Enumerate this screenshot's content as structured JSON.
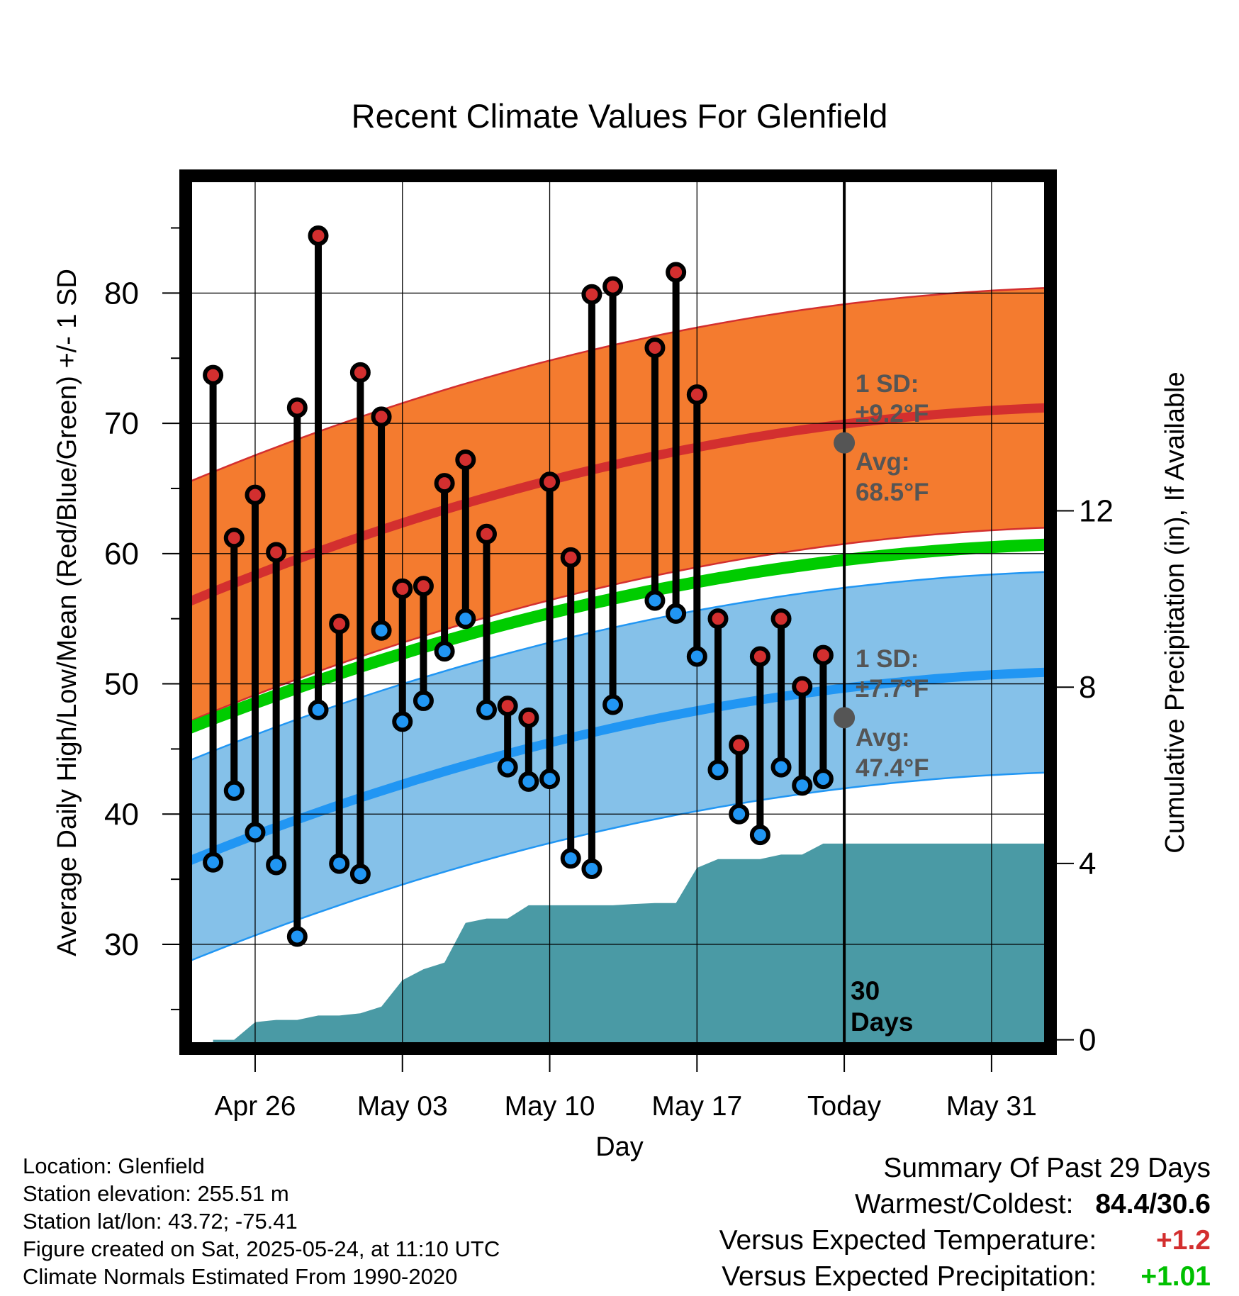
{
  "title": "Recent Climate Values For Glenfield",
  "xlabel": "Day",
  "ylabel_left": "Average Daily High/Low/Mean (Red/Blue/Green) +/- 1 SD",
  "ylabel_right": "Cumulative Precipitation (in), If Available",
  "annotations": {
    "high_sd_line1": "1 SD:",
    "high_sd_line2": "±9.2°F",
    "high_avg_line1": "Avg:",
    "high_avg_line2": "68.5°F",
    "low_sd_line1": "1 SD:",
    "low_sd_line2": "±7.7°F",
    "low_avg_line1": "Avg:",
    "low_avg_line2": "47.4°F",
    "days_line1": "30",
    "days_line2": "Days"
  },
  "info": {
    "location": "Location: Glenfield",
    "elevation": "Station elevation: 255.51 m",
    "latlon": "Station lat/lon: 43.72; -75.41",
    "created": "Figure created on Sat, 2025-05-24, at 11:10 UTC",
    "normals": "Climate Normals Estimated From 1990-2020"
  },
  "summary": {
    "heading": "Summary Of Past 29 Days",
    "warmest_coldest_label": "Warmest/Coldest:",
    "warmest_coldest_value": "84.4/30.6",
    "temp_label": "Versus Expected Temperature:",
    "temp_value": "+1.2",
    "precip_label": "Versus Expected Precipitation:",
    "precip_value": "+1.01"
  },
  "colors": {
    "high": "#d32f2f",
    "low": "#2196f3",
    "mean": "#00cc00",
    "high_band": "#f47b2f",
    "low_band": "#85c1e9",
    "precip": "#4a9aa5",
    "avg_dot": "#555555"
  },
  "chart_data": {
    "type": "line",
    "x_ticks": [
      {
        "day": 3,
        "label": "Apr 26"
      },
      {
        "day": 10,
        "label": "May 03"
      },
      {
        "day": 17,
        "label": "May 10"
      },
      {
        "day": 24,
        "label": "May 17"
      },
      {
        "day": 31,
        "label": "Today"
      },
      {
        "day": 38,
        "label": "May 31"
      }
    ],
    "xlim": [
      -0.3,
      40.8
    ],
    "ylim_left": [
      22,
      89
    ],
    "yticks_left": [
      30,
      40,
      50,
      60,
      70,
      80
    ],
    "ylim_right": [
      -0.2,
      19.6
    ],
    "yticks_right": [
      0,
      4,
      8,
      12
    ],
    "today_day": 31,
    "daily": {
      "day": [
        1,
        2,
        3,
        4,
        5,
        6,
        7,
        8,
        9,
        10,
        11,
        12,
        13,
        14,
        15,
        16,
        17,
        18,
        19,
        20,
        22,
        23,
        24,
        25,
        26,
        27,
        28,
        29,
        30
      ],
      "high": [
        73.7,
        61.2,
        64.5,
        60.1,
        71.2,
        84.4,
        54.6,
        73.9,
        70.5,
        57.3,
        57.5,
        65.4,
        67.2,
        61.5,
        48.3,
        47.4,
        65.5,
        59.7,
        79.9,
        80.5,
        75.8,
        81.6,
        72.2,
        55.0,
        45.3,
        52.1,
        55.0,
        49.8,
        52.2
      ],
      "low": [
        36.3,
        41.8,
        38.6,
        36.1,
        30.6,
        48.0,
        36.2,
        35.4,
        54.1,
        47.1,
        48.7,
        52.5,
        55.0,
        48.0,
        43.6,
        42.5,
        42.7,
        36.6,
        35.8,
        48.4,
        56.4,
        55.4,
        52.1,
        43.4,
        40.0,
        38.4,
        43.6,
        42.2,
        42.7
      ]
    },
    "normals": {
      "day": [
        -0.3,
        40.8
      ],
      "high_mean": [
        56.2,
        71.2
      ],
      "high_sd": 9.2,
      "low_mean": [
        36.3,
        50.9
      ],
      "low_sd": 7.7,
      "daily_mean": [
        46.5,
        60.7
      ]
    },
    "today_high_avg": 68.5,
    "today_low_avg": 47.4,
    "precip_cumulative": {
      "day": [
        1,
        2,
        3,
        4,
        5,
        6,
        7,
        8,
        9,
        10,
        11,
        12,
        13,
        14,
        15,
        16,
        17,
        18,
        19,
        20,
        21,
        22,
        23,
        24,
        25,
        26,
        27,
        28,
        29,
        30,
        31,
        40.8
      ],
      "value": [
        0,
        0,
        0.4,
        0.45,
        0.45,
        0.55,
        0.55,
        0.6,
        0.75,
        1.35,
        1.6,
        1.75,
        2.65,
        2.75,
        2.75,
        3.05,
        3.05,
        3.05,
        3.05,
        3.05,
        3.08,
        3.1,
        3.1,
        3.9,
        4.1,
        4.1,
        4.1,
        4.2,
        4.2,
        4.45,
        4.45,
        4.45
      ]
    }
  }
}
